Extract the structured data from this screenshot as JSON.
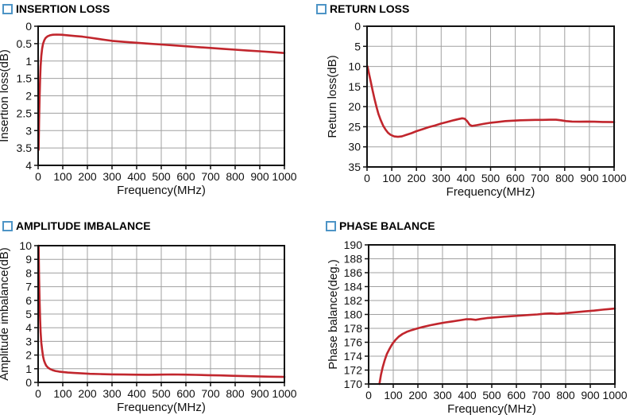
{
  "page": {
    "background": "#ffffff"
  },
  "colors": {
    "curve": "#c1262d",
    "grid": "#a0a0a0",
    "axis": "#111111",
    "text": "#111111",
    "section_marker": "#4d94c6"
  },
  "chart_data": [
    {
      "id": "insertion-loss",
      "type": "line",
      "title": "INSERTION LOSS",
      "xlabel": "Frequency(MHz)",
      "ylabel": "Insertion loss(dB)",
      "xlim": [
        0,
        1000
      ],
      "ylim": [
        0,
        4
      ],
      "y_inverted": true,
      "xticks": [
        0,
        100,
        200,
        300,
        400,
        500,
        600,
        700,
        800,
        900,
        1000
      ],
      "yticks": [
        0,
        0.5,
        1,
        1.5,
        2,
        2.5,
        3,
        3.5,
        4
      ],
      "grid": true,
      "legend": "none",
      "series": [
        {
          "name": "insertion loss",
          "color": "#c1262d",
          "points": [
            [
              2,
              3.55
            ],
            [
              4,
              2.7
            ],
            [
              6,
              2.0
            ],
            [
              8,
              1.5
            ],
            [
              10,
              1.15
            ],
            [
              13,
              0.85
            ],
            [
              16,
              0.65
            ],
            [
              20,
              0.5
            ],
            [
              25,
              0.4
            ],
            [
              30,
              0.34
            ],
            [
              38,
              0.29
            ],
            [
              48,
              0.26
            ],
            [
              60,
              0.245
            ],
            [
              75,
              0.24
            ],
            [
              95,
              0.245
            ],
            [
              120,
              0.26
            ],
            [
              150,
              0.28
            ],
            [
              180,
              0.3
            ],
            [
              210,
              0.33
            ],
            [
              250,
              0.37
            ],
            [
              300,
              0.42
            ],
            [
              350,
              0.45
            ],
            [
              400,
              0.475
            ],
            [
              450,
              0.5
            ],
            [
              500,
              0.525
            ],
            [
              550,
              0.55
            ],
            [
              600,
              0.575
            ],
            [
              650,
              0.6
            ],
            [
              700,
              0.625
            ],
            [
              750,
              0.65
            ],
            [
              800,
              0.675
            ],
            [
              850,
              0.7
            ],
            [
              900,
              0.72
            ],
            [
              950,
              0.745
            ],
            [
              1000,
              0.77
            ]
          ]
        }
      ]
    },
    {
      "id": "return-loss",
      "type": "line",
      "title": "RETURN LOSS",
      "xlabel": "Frequency(MHz)",
      "ylabel": "Return loss(dB)",
      "xlim": [
        0,
        1000
      ],
      "ylim": [
        0,
        35
      ],
      "y_inverted": true,
      "xticks": [
        0,
        100,
        200,
        300,
        400,
        500,
        600,
        700,
        800,
        900,
        1000
      ],
      "yticks": [
        0,
        5,
        10,
        15,
        20,
        25,
        30,
        35
      ],
      "grid": true,
      "legend": "none",
      "series": [
        {
          "name": "return loss",
          "color": "#c1262d",
          "points": [
            [
              2,
              10
            ],
            [
              8,
              11.8
            ],
            [
              15,
              13.8
            ],
            [
              22,
              15.8
            ],
            [
              30,
              18.0
            ],
            [
              38,
              20.0
            ],
            [
              46,
              21.8
            ],
            [
              55,
              23.3
            ],
            [
              65,
              24.7
            ],
            [
              75,
              25.7
            ],
            [
              85,
              26.5
            ],
            [
              95,
              27.0
            ],
            [
              110,
              27.4
            ],
            [
              125,
              27.5
            ],
            [
              140,
              27.4
            ],
            [
              160,
              27.0
            ],
            [
              180,
              26.6
            ],
            [
              200,
              26.1
            ],
            [
              225,
              25.6
            ],
            [
              250,
              25.1
            ],
            [
              275,
              24.7
            ],
            [
              300,
              24.2
            ],
            [
              325,
              23.8
            ],
            [
              350,
              23.4
            ],
            [
              370,
              23.1
            ],
            [
              385,
              22.9
            ],
            [
              395,
              23.0
            ],
            [
              405,
              23.6
            ],
            [
              415,
              24.5
            ],
            [
              425,
              24.8
            ],
            [
              445,
              24.6
            ],
            [
              470,
              24.3
            ],
            [
              500,
              24.0
            ],
            [
              530,
              23.8
            ],
            [
              560,
              23.6
            ],
            [
              590,
              23.5
            ],
            [
              620,
              23.4
            ],
            [
              650,
              23.35
            ],
            [
              680,
              23.3
            ],
            [
              710,
              23.3
            ],
            [
              740,
              23.25
            ],
            [
              765,
              23.25
            ],
            [
              785,
              23.4
            ],
            [
              805,
              23.6
            ],
            [
              830,
              23.7
            ],
            [
              860,
              23.75
            ],
            [
              890,
              23.7
            ],
            [
              920,
              23.75
            ],
            [
              955,
              23.8
            ],
            [
              1000,
              23.85
            ]
          ]
        }
      ]
    },
    {
      "id": "amplitude-imbalance",
      "type": "line",
      "title": "AMPLITUDE IMBALANCE",
      "xlabel": "Frequency(MHz)",
      "ylabel": "Amplitude imbalance(dB)",
      "xlim": [
        0,
        1000
      ],
      "ylim": [
        0,
        10
      ],
      "y_inverted": false,
      "xticks": [
        0,
        100,
        200,
        300,
        400,
        500,
        600,
        700,
        800,
        900,
        1000
      ],
      "yticks": [
        0,
        1,
        2,
        3,
        4,
        5,
        6,
        7,
        8,
        9,
        10
      ],
      "grid": true,
      "legend": "none",
      "series": [
        {
          "name": "amplitude imbalance",
          "color": "#c1262d",
          "points": [
            [
              2,
              10
            ],
            [
              4,
              7.6
            ],
            [
              6,
              5.8
            ],
            [
              8,
              4.6
            ],
            [
              10,
              3.7
            ],
            [
              13,
              2.9
            ],
            [
              16,
              2.4
            ],
            [
              20,
              1.9
            ],
            [
              24,
              1.6
            ],
            [
              28,
              1.4
            ],
            [
              33,
              1.22
            ],
            [
              40,
              1.08
            ],
            [
              48,
              0.98
            ],
            [
              58,
              0.9
            ],
            [
              70,
              0.84
            ],
            [
              85,
              0.79
            ],
            [
              100,
              0.76
            ],
            [
              120,
              0.72
            ],
            [
              145,
              0.69
            ],
            [
              175,
              0.66
            ],
            [
              210,
              0.63
            ],
            [
              250,
              0.61
            ],
            [
              300,
              0.59
            ],
            [
              350,
              0.575
            ],
            [
              400,
              0.565
            ],
            [
              450,
              0.56
            ],
            [
              500,
              0.57
            ],
            [
              545,
              0.58
            ],
            [
              590,
              0.57
            ],
            [
              640,
              0.55
            ],
            [
              690,
              0.53
            ],
            [
              740,
              0.51
            ],
            [
              790,
              0.48
            ],
            [
              840,
              0.46
            ],
            [
              890,
              0.44
            ],
            [
              940,
              0.42
            ],
            [
              1000,
              0.4
            ]
          ]
        }
      ]
    },
    {
      "id": "phase-balance",
      "type": "line",
      "title": "PHASE BALANCE",
      "xlabel": "Frequency(MHz)",
      "ylabel": "Phase balance(deg.)",
      "xlim": [
        0,
        1000
      ],
      "ylim": [
        170,
        190
      ],
      "y_inverted": false,
      "xticks": [
        0,
        100,
        200,
        300,
        400,
        500,
        600,
        700,
        800,
        900,
        1000
      ],
      "yticks": [
        170,
        172,
        174,
        176,
        178,
        180,
        182,
        184,
        186,
        188,
        190
      ],
      "grid": true,
      "legend": "none",
      "series": [
        {
          "name": "phase balance",
          "color": "#c1262d",
          "points": [
            [
              44,
              170
            ],
            [
              50,
              171.3
            ],
            [
              57,
              172.4
            ],
            [
              65,
              173.4
            ],
            [
              74,
              174.3
            ],
            [
              84,
              175.0
            ],
            [
              95,
              175.7
            ],
            [
              108,
              176.3
            ],
            [
              122,
              176.8
            ],
            [
              138,
              177.2
            ],
            [
              155,
              177.5
            ],
            [
              175,
              177.75
            ],
            [
              195,
              177.95
            ],
            [
              220,
              178.2
            ],
            [
              250,
              178.45
            ],
            [
              280,
              178.65
            ],
            [
              310,
              178.85
            ],
            [
              340,
              179.0
            ],
            [
              370,
              179.15
            ],
            [
              395,
              179.3
            ],
            [
              415,
              179.3
            ],
            [
              435,
              179.22
            ],
            [
              455,
              179.35
            ],
            [
              480,
              179.47
            ],
            [
              510,
              179.57
            ],
            [
              545,
              179.67
            ],
            [
              580,
              179.75
            ],
            [
              615,
              179.83
            ],
            [
              650,
              179.92
            ],
            [
              685,
              180.0
            ],
            [
              715,
              180.1
            ],
            [
              740,
              180.15
            ],
            [
              765,
              180.08
            ],
            [
              790,
              180.15
            ],
            [
              820,
              180.25
            ],
            [
              850,
              180.35
            ],
            [
              880,
              180.45
            ],
            [
              915,
              180.55
            ],
            [
              950,
              180.68
            ],
            [
              975,
              180.77
            ],
            [
              1000,
              180.85
            ]
          ]
        }
      ]
    }
  ]
}
